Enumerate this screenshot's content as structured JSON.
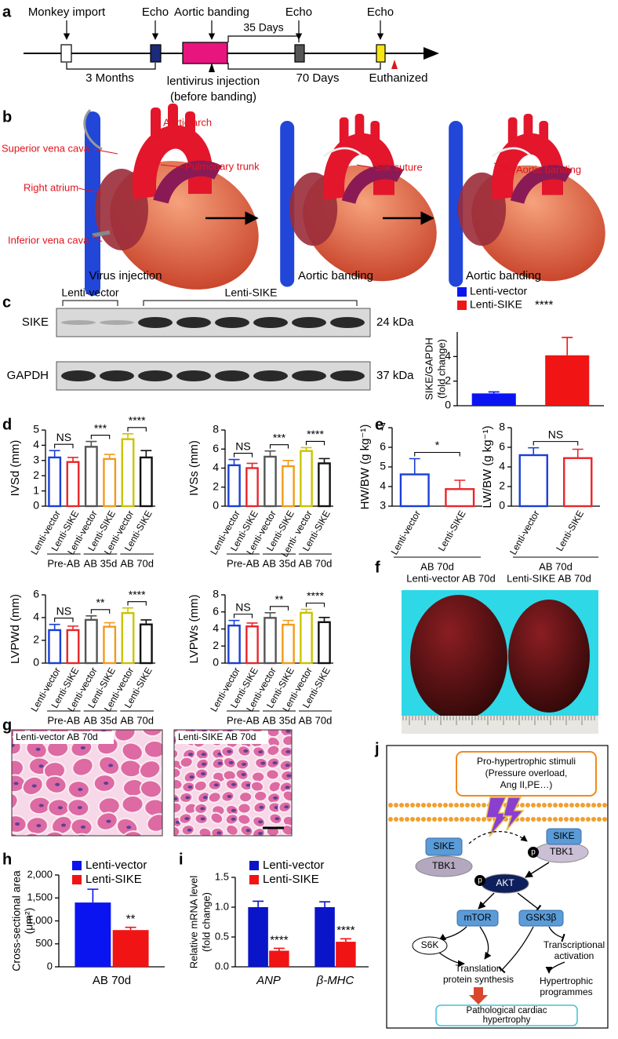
{
  "panel_labels": [
    "a",
    "b",
    "c",
    "d",
    "e",
    "f",
    "g",
    "h",
    "i",
    "j"
  ],
  "timeline": {
    "events": [
      "Monkey import",
      "Echo",
      "Aortic banding",
      "Echo",
      "Echo"
    ],
    "durations": [
      "3 Months",
      "35 Days",
      "70 Days"
    ],
    "injection": [
      "lentivirus injection",
      "(before banding)"
    ],
    "endpoint": "Euthanized"
  },
  "surgery": {
    "annotations": [
      "Aortic arch",
      "Superior vena cava",
      "Pulmonary trunk",
      "Right atrium",
      "Inferior vena cava",
      "Silk suture",
      "Aortic banding"
    ],
    "captions": [
      "Virus injection",
      "Aortic banding",
      "Aortic banding"
    ]
  },
  "western_blot": {
    "groups": [
      "Lenti-vector",
      "Lenti-SIKE"
    ],
    "rows": [
      "SIKE",
      "GAPDH"
    ],
    "sizes": [
      "24 kDa",
      "37 kDa"
    ]
  },
  "chart_data": [
    {
      "type": "bar",
      "ylabel": [
        "SIKE/GAPDH",
        "(fold change)"
      ],
      "categories": [
        "Lenti-vector",
        "Lenti-SIKE"
      ],
      "values": [
        1.0,
        4.1
      ],
      "errors": [
        0.12,
        1.45
      ],
      "colors": [
        "#0a14f0",
        "#f01414"
      ],
      "ylim": [
        0,
        6
      ],
      "yticks": [
        0,
        2,
        4
      ],
      "significance": "****"
    },
    {
      "type": "bar",
      "ylabel": "IVSd (mm)",
      "categories": [
        "Lenti-vector",
        "Lenti-SIKE",
        "Lenti-vector",
        "Lenti-SIKE",
        "Lenti-vector",
        "Lenti-SIKE"
      ],
      "values": [
        3.2,
        2.9,
        3.9,
        3.1,
        4.4,
        3.2
      ],
      "errors": [
        0.45,
        0.3,
        0.35,
        0.3,
        0.35,
        0.45
      ],
      "colors": [
        "#1a3fd6",
        "#e8262b",
        "#555555",
        "#f39a1b",
        "#c9c400",
        "#111111"
      ],
      "ylim": [
        0,
        5
      ],
      "yticks": [
        0,
        1,
        2,
        3,
        4,
        5
      ],
      "groups": [
        "Pre-AB",
        "AB 35d",
        "AB 70d"
      ],
      "significance": [
        "NS",
        "***",
        "****"
      ]
    },
    {
      "type": "bar",
      "ylabel": "IVSs (mm)",
      "categories": [
        "Lenti-vector",
        "Lenti-SIKE",
        "Lenti-vector",
        "Lenti-SIKE",
        "Lenti- vector",
        "Lenti-SIKE"
      ],
      "values": [
        4.3,
        4.0,
        5.2,
        4.2,
        5.8,
        4.5
      ],
      "errors": [
        0.6,
        0.5,
        0.6,
        0.6,
        0.35,
        0.5
      ],
      "colors": [
        "#1a3fd6",
        "#e8262b",
        "#555555",
        "#f39a1b",
        "#c9c400",
        "#111111"
      ],
      "ylim": [
        0,
        8
      ],
      "yticks": [
        0,
        2,
        4,
        6,
        8
      ],
      "groups": [
        "Pre-AB",
        "AB 35d",
        "AB 70d"
      ],
      "significance": [
        "NS",
        "***",
        "****"
      ]
    },
    {
      "type": "bar",
      "ylabel": "LVPWd (mm)",
      "categories": [
        "Lenti-vector",
        "Lenti-SIKE",
        "Lenti-vector",
        "Lenti-SIKE",
        "Lenti-vector",
        "Lenti-SIKE"
      ],
      "values": [
        2.9,
        2.9,
        3.8,
        3.2,
        4.4,
        3.4
      ],
      "errors": [
        0.5,
        0.35,
        0.35,
        0.35,
        0.45,
        0.4
      ],
      "colors": [
        "#1a3fd6",
        "#e8262b",
        "#555555",
        "#f39a1b",
        "#c9c400",
        "#111111"
      ],
      "ylim": [
        0,
        6
      ],
      "yticks": [
        0,
        2,
        4,
        6
      ],
      "groups": [
        "Pre-AB",
        "AB 35d",
        "AB 70d"
      ],
      "significance": [
        "NS",
        "**",
        "****"
      ]
    },
    {
      "type": "bar",
      "ylabel": "LVPWs (mm)",
      "categories": [
        "Lenti-vector",
        "Lenti-SIKE",
        "Lenti-vector",
        "Lenti-SIKE",
        "Lenti-vector",
        "Lenti-SIKE"
      ],
      "values": [
        4.4,
        4.3,
        5.3,
        4.5,
        5.9,
        4.8
      ],
      "errors": [
        0.6,
        0.4,
        0.6,
        0.5,
        0.4,
        0.55
      ],
      "colors": [
        "#1a3fd6",
        "#e8262b",
        "#555555",
        "#f39a1b",
        "#c9c400",
        "#111111"
      ],
      "ylim": [
        0,
        8
      ],
      "yticks": [
        0,
        2,
        4,
        6,
        8
      ],
      "groups": [
        "Pre-AB",
        "AB 35d",
        "AB 70d"
      ],
      "significance": [
        "NS",
        "**",
        "****"
      ]
    },
    {
      "type": "bar",
      "ylabel": "HW/BW (g kg⁻¹)",
      "categories": [
        "Lenti-vector",
        "Lenti-SIKE"
      ],
      "values": [
        4.62,
        3.87
      ],
      "errors": [
        0.8,
        0.45
      ],
      "colors": [
        "#1a3fd6",
        "#e8262b"
      ],
      "ylim": [
        3,
        7
      ],
      "yticks": [
        3,
        4,
        5,
        6,
        7
      ],
      "groups": [
        "AB 70d"
      ],
      "significance": [
        "*"
      ]
    },
    {
      "type": "bar",
      "ylabel": "LW/BW (g kg⁻¹)",
      "categories": [
        "Lenti-vector",
        "Lenti-SIKE"
      ],
      "values": [
        5.2,
        4.9
      ],
      "errors": [
        0.75,
        0.9
      ],
      "colors": [
        "#1a3fd6",
        "#e8262b"
      ],
      "ylim": [
        0,
        8
      ],
      "yticks": [
        0,
        2,
        4,
        6,
        8
      ],
      "groups": [
        "AB 70d"
      ],
      "significance": [
        "NS"
      ]
    },
    {
      "type": "bar",
      "ylabel": [
        "Cross-sectional area",
        "(μm²)"
      ],
      "categories": [
        "AB 70d"
      ],
      "series": [
        {
          "name": "Lenti-vector",
          "color": "#0a14f0",
          "values": [
            1400
          ],
          "errors": [
            290
          ]
        },
        {
          "name": "Lenti-SIKE",
          "color": "#f01414",
          "values": [
            800
          ],
          "errors": [
            60
          ],
          "significance": [
            "**"
          ]
        }
      ],
      "ylim": [
        0,
        2000
      ],
      "yticks": [
        0,
        500,
        {
          "value": 1000,
          "label": "1,000"
        },
        {
          "value": 1500,
          "label": "1,500"
        },
        {
          "value": 2000,
          "label": "2,000"
        }
      ]
    },
    {
      "type": "bar",
      "ylabel": [
        "Relative mRNA level",
        "(fold change)"
      ],
      "categories": [
        "ANP",
        "β-MHC"
      ],
      "series": [
        {
          "name": "Lenti-vector",
          "color": "#0a14c8",
          "values": [
            1.0,
            1.0
          ],
          "errors": [
            0.1,
            0.09
          ]
        },
        {
          "name": "Lenti-SIKE",
          "color": "#f01414",
          "values": [
            0.27,
            0.42
          ],
          "errors": [
            0.04,
            0.05
          ],
          "significance": [
            "****",
            "****"
          ]
        }
      ],
      "ylim": [
        0,
        1.5
      ],
      "yticks": [
        {
          "value": 0,
          "label": "0.0"
        },
        0.5,
        {
          "value": 1,
          "label": "1.0"
        },
        1.5
      ]
    }
  ],
  "heart_photos": {
    "titles": [
      "Lenti-vector AB 70d",
      "Lenti-SIKE AB 70d"
    ]
  },
  "histology": {
    "titles": [
      "Lenti-vector AB 70d",
      "Lenti-SIKE AB 70d"
    ]
  },
  "pathway": {
    "stimulus": [
      "Pro-hypertrophic stimuli",
      "(Pressure overload,",
      "Ang II,PE…)"
    ],
    "nodes": [
      "SIKE",
      "TBK1",
      "SIKE",
      "TBK1",
      "AKT",
      "mTOR",
      "GSK3β",
      "S6K"
    ],
    "phospho": [
      "p",
      "p",
      "p"
    ],
    "outcomes": [
      "Translation",
      "protein synthesis",
      "Transcriptional",
      "activation",
      "Hypertrophic",
      "programmes"
    ],
    "result": [
      "Pathological cardiac",
      "hypertrophy"
    ]
  }
}
